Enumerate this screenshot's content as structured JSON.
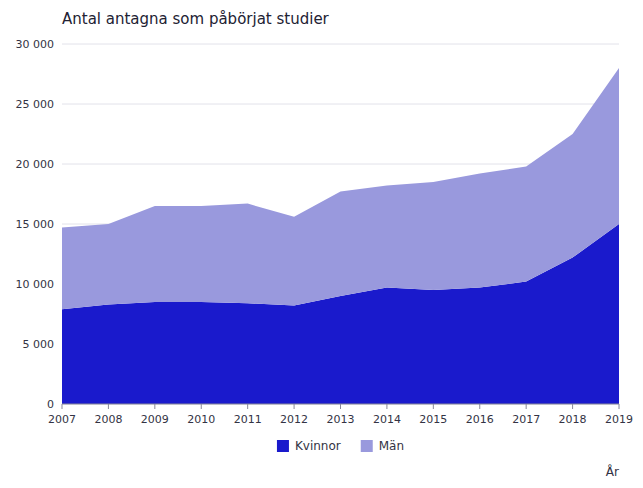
{
  "chart_data": {
    "type": "area",
    "stacked": true,
    "title": "Antal antagna som påbörjat studier",
    "xlabel": "År",
    "x": [
      2007,
      2008,
      2009,
      2010,
      2011,
      2012,
      2013,
      2014,
      2015,
      2016,
      2017,
      2018,
      2019
    ],
    "series": [
      {
        "name": "Kvinnor",
        "color": "#1a1acc",
        "values": [
          7900,
          8300,
          8500,
          8500,
          8400,
          8200,
          9000,
          9700,
          9500,
          9700,
          10200,
          12200,
          15000
        ]
      },
      {
        "name": "Män",
        "color": "#9999dd",
        "values": [
          6800,
          6700,
          8000,
          8000,
          8300,
          7400,
          8700,
          8500,
          9000,
          9500,
          9600,
          10300,
          13000
        ]
      }
    ],
    "xlim": [
      2007,
      2019
    ],
    "xticks": [
      2007,
      2008,
      2009,
      2010,
      2011,
      2012,
      2013,
      2014,
      2015,
      2016,
      2017,
      2018,
      2019
    ],
    "ylim": [
      0,
      30000
    ],
    "yticks": [
      0,
      {
        "value": 5000,
        "label": "5 000"
      },
      {
        "value": 10000,
        "label": "10 000"
      },
      {
        "value": 15000,
        "label": "15 000"
      },
      {
        "value": 20000,
        "label": "20 000"
      },
      {
        "value": 25000,
        "label": "25 000"
      },
      {
        "value": 30000,
        "label": "30 000"
      }
    ],
    "grid": true,
    "legend": "bottom"
  }
}
